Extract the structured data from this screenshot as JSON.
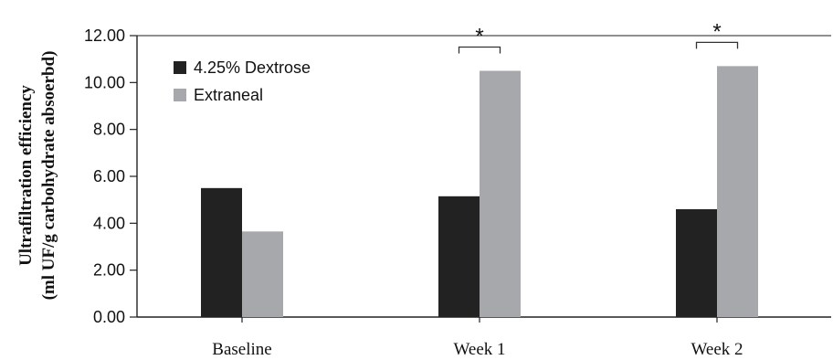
{
  "chart_data": {
    "type": "bar",
    "title": "",
    "xlabel": "",
    "ylabel": [
      "Ultrafiltration efficiency",
      "(ml UF/g carbohydrate absoerbd)"
    ],
    "categories": [
      "Baseline",
      "Week 1",
      "Week 2"
    ],
    "series": [
      {
        "name": "4.25% Dextrose",
        "values": [
          5.5,
          5.15,
          4.6
        ],
        "color": "#222222"
      },
      {
        "name": "Extraneal",
        "values": [
          3.65,
          10.5,
          10.7
        ],
        "color": "#a6a8ab"
      }
    ],
    "ylim": [
      0,
      12
    ],
    "yticks": [
      "0.00",
      "2.00",
      "4.00",
      "6.00",
      "8.00",
      "10.00",
      "12.00"
    ],
    "yticks_values": [
      0,
      2,
      4,
      6,
      8,
      10,
      12
    ],
    "grid": false,
    "legend_position": "top-left",
    "significance": [
      {
        "category": "Week 1",
        "label": "*"
      },
      {
        "category": "Week 2",
        "label": "*"
      }
    ]
  }
}
